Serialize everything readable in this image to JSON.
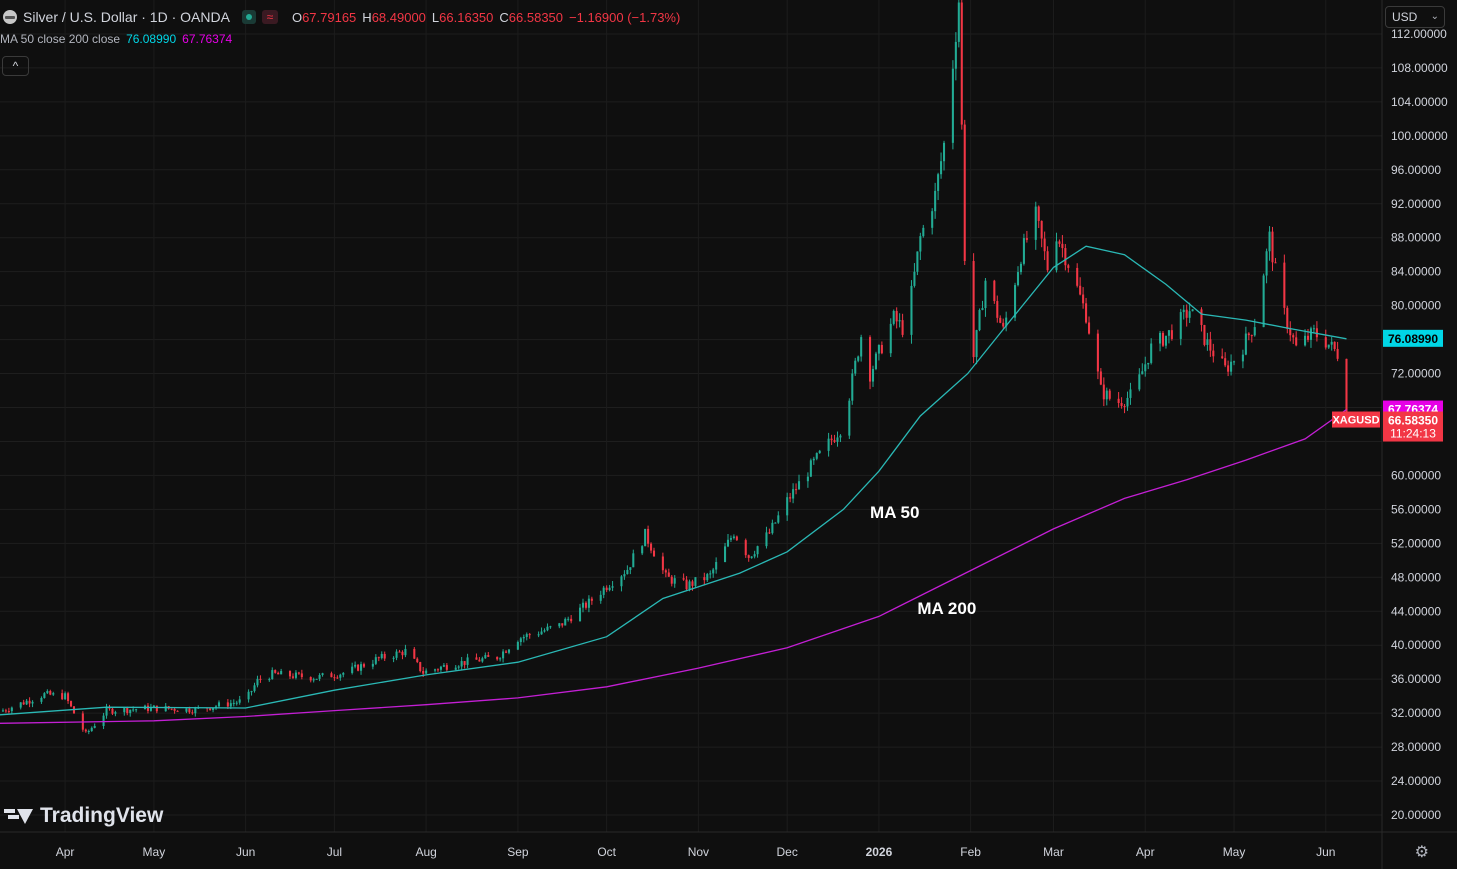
{
  "header": {
    "title": "Silver / U.S. Dollar · 1D · OANDA",
    "o_label": "O",
    "o_value": "67.79165",
    "h_label": "H",
    "h_value": "68.49000",
    "l_label": "L",
    "l_value": "66.16350",
    "c_label": "C",
    "c_value": "66.58350",
    "change": "−1.16900 (−1.73%)",
    "ma_label": "MA 50 close 200 close",
    "ma50_value": "76.08990",
    "ma200_value": "67.76374",
    "collapse_icon": "^"
  },
  "currency": {
    "label": "USD",
    "chevron": "⌄"
  },
  "brand": {
    "name": "TradingView"
  },
  "colors": {
    "up": "#22ab94",
    "down": "#f23645",
    "ma50": "#2ab8b5",
    "ma200": "#c31fd4",
    "ma50_tag": "#00d6e6",
    "ma200_tag": "#e600e6",
    "price_tag": "#f23645"
  },
  "chart_data": {
    "type": "candlestick",
    "symbol": "XAGUSD",
    "y_ticks": [
      "112.00000",
      "108.00000",
      "104.00000",
      "100.00000",
      "96.00000",
      "92.00000",
      "88.00000",
      "84.00000",
      "80.00000",
      "76.00000",
      "72.00000",
      "68.00000",
      "64.00000",
      "60.00000",
      "56.00000",
      "52.00000",
      "48.00000",
      "44.00000",
      "40.00000",
      "36.00000",
      "32.00000",
      "28.00000",
      "24.00000",
      "20.00000"
    ],
    "y_tick_values": [
      112,
      108,
      104,
      100,
      96,
      92,
      88,
      84,
      80,
      76,
      72,
      68,
      64,
      60,
      56,
      52,
      48,
      44,
      40,
      36,
      32,
      28,
      24,
      20
    ],
    "x_ticks": [
      "Apr",
      "May",
      "Jun",
      "Jul",
      "Aug",
      "Sep",
      "Oct",
      "Nov",
      "Dec",
      "2026",
      "Feb",
      "Mar",
      "Apr",
      "May",
      "Jun"
    ],
    "x_tick_dates": [
      "2025-04-01",
      "2025-05-01",
      "2025-06-01",
      "2025-07-01",
      "2025-08-01",
      "2025-09-01",
      "2025-10-01",
      "2025-11-01",
      "2025-12-01",
      "2026-01-01",
      "2026-02-01",
      "2026-03-01",
      "2026-04-01",
      "2026-05-01",
      "2026-06-01"
    ],
    "ylim": [
      18,
      116
    ],
    "x_range": [
      "2025-03-10",
      "2026-06-20"
    ],
    "price_path": [
      [
        "2025-03-10",
        32.2
      ],
      [
        "2025-03-25",
        34.2
      ],
      [
        "2025-04-01",
        34.0
      ],
      [
        "2025-04-04",
        32.0
      ],
      [
        "2025-04-08",
        29.5
      ],
      [
        "2025-04-15",
        32.3
      ],
      [
        "2025-05-01",
        32.6
      ],
      [
        "2025-05-15",
        32.4
      ],
      [
        "2025-06-01",
        33.5
      ],
      [
        "2025-06-05",
        35.8
      ],
      [
        "2025-06-10",
        36.6
      ],
      [
        "2025-06-25",
        36.2
      ],
      [
        "2025-07-05",
        36.8
      ],
      [
        "2025-07-15",
        38.3
      ],
      [
        "2025-07-25",
        39.3
      ],
      [
        "2025-07-31",
        36.8
      ],
      [
        "2025-08-10",
        37.8
      ],
      [
        "2025-08-25",
        38.6
      ],
      [
        "2025-09-01",
        40.8
      ],
      [
        "2025-09-15",
        42.3
      ],
      [
        "2025-09-25",
        45.0
      ],
      [
        "2025-10-01",
        47.0
      ],
      [
        "2025-10-08",
        49.0
      ],
      [
        "2025-10-14",
        53.0
      ],
      [
        "2025-10-17",
        51.0
      ],
      [
        "2025-10-21",
        48.0
      ],
      [
        "2025-10-28",
        47.0
      ],
      [
        "2025-11-05",
        48.2
      ],
      [
        "2025-11-13",
        53.3
      ],
      [
        "2025-11-18",
        50.5
      ],
      [
        "2025-11-25",
        53.2
      ],
      [
        "2025-12-01",
        57.0
      ],
      [
        "2025-12-10",
        61.5
      ],
      [
        "2025-12-20",
        66.0
      ],
      [
        "2025-12-26",
        76.5
      ],
      [
        "2025-12-29",
        72.0
      ],
      [
        "2026-01-06",
        78.5
      ],
      [
        "2026-01-10",
        77.0
      ],
      [
        "2026-01-15",
        88.0
      ],
      [
        "2026-01-20",
        93.0
      ],
      [
        "2026-01-24",
        101.0
      ],
      [
        "2026-01-28",
        116.0
      ],
      [
        "2026-01-30",
        86.0
      ],
      [
        "2026-02-02",
        74.0
      ],
      [
        "2026-02-06",
        83.0
      ],
      [
        "2026-02-12",
        77.0
      ],
      [
        "2026-02-18",
        86.0
      ],
      [
        "2026-02-23",
        90.5
      ],
      [
        "2026-02-27",
        84.5
      ],
      [
        "2026-03-02",
        88.5
      ],
      [
        "2026-03-06",
        85.0
      ],
      [
        "2026-03-12",
        79.0
      ],
      [
        "2026-03-17",
        70.0
      ],
      [
        "2026-03-22",
        68.5
      ],
      [
        "2026-03-28",
        69.5
      ],
      [
        "2026-04-03",
        75.0
      ],
      [
        "2026-04-10",
        77.0
      ],
      [
        "2026-04-16",
        79.5
      ],
      [
        "2026-04-22",
        75.5
      ],
      [
        "2026-04-28",
        72.5
      ],
      [
        "2026-05-03",
        74.5
      ],
      [
        "2026-05-08",
        78.0
      ],
      [
        "2026-05-13",
        88.0
      ],
      [
        "2026-05-17",
        80.0
      ],
      [
        "2026-05-22",
        75.0
      ],
      [
        "2026-05-28",
        76.8
      ],
      [
        "2026-06-01",
        75.8
      ],
      [
        "2026-06-06",
        74.0
      ],
      [
        "2026-06-08",
        66.58
      ]
    ],
    "ma50": [
      [
        "2025-03-10",
        31.8
      ],
      [
        "2025-04-15",
        32.7
      ],
      [
        "2025-06-01",
        32.6
      ],
      [
        "2025-07-01",
        34.7
      ],
      [
        "2025-08-01",
        36.5
      ],
      [
        "2025-09-01",
        38.0
      ],
      [
        "2025-10-01",
        41.0
      ],
      [
        "2025-10-20",
        45.5
      ],
      [
        "2025-11-15",
        48.5
      ],
      [
        "2025-12-01",
        51.0
      ],
      [
        "2025-12-20",
        56.0
      ],
      [
        "2026-01-01",
        60.5
      ],
      [
        "2026-01-15",
        67.0
      ],
      [
        "2026-01-31",
        72.0
      ],
      [
        "2026-02-15",
        78.5
      ],
      [
        "2026-03-01",
        84.5
      ],
      [
        "2026-03-12",
        87.0
      ],
      [
        "2026-03-25",
        86.0
      ],
      [
        "2026-04-08",
        82.5
      ],
      [
        "2026-04-20",
        79.0
      ],
      [
        "2026-05-05",
        78.3
      ],
      [
        "2026-05-20",
        77.3
      ],
      [
        "2026-06-08",
        76.09
      ]
    ],
    "ma200": [
      [
        "2025-03-10",
        30.8
      ],
      [
        "2025-05-01",
        31.1
      ],
      [
        "2025-06-01",
        31.6
      ],
      [
        "2025-07-01",
        32.3
      ],
      [
        "2025-08-01",
        33.0
      ],
      [
        "2025-09-01",
        33.8
      ],
      [
        "2025-10-01",
        35.1
      ],
      [
        "2025-11-01",
        37.3
      ],
      [
        "2025-12-01",
        39.7
      ],
      [
        "2026-01-01",
        43.4
      ],
      [
        "2026-02-01",
        48.8
      ],
      [
        "2026-03-01",
        53.7
      ],
      [
        "2026-03-25",
        57.3
      ],
      [
        "2026-04-15",
        59.5
      ],
      [
        "2026-05-05",
        61.8
      ],
      [
        "2026-05-25",
        64.3
      ],
      [
        "2026-06-08",
        67.76
      ]
    ],
    "annotations": [
      {
        "text": "MA 50",
        "x": "2025-12-29",
        "y": 55.0
      },
      {
        "text": "MA 200",
        "x": "2026-01-14",
        "y": 43.7
      }
    ],
    "price_tags": {
      "ma50": "76.08990",
      "ma200": "67.76374",
      "close": "66.58350",
      "countdown": "11:24:13",
      "symbol": "XAGUSD"
    }
  }
}
